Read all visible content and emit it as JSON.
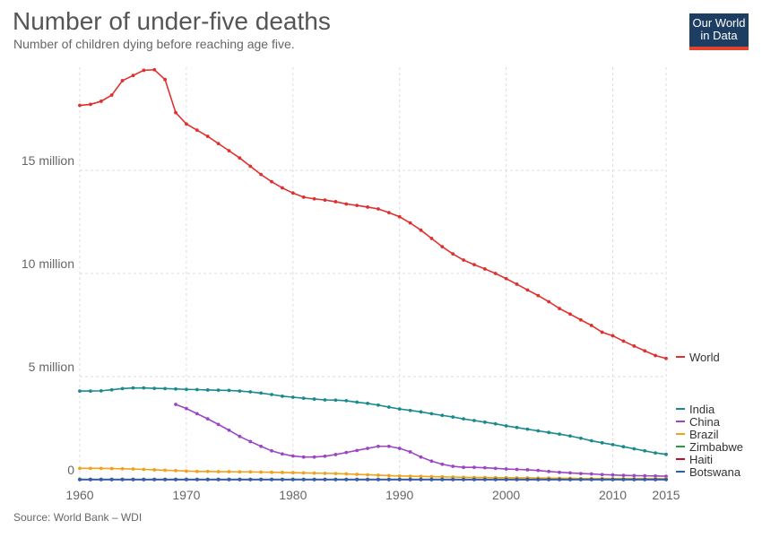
{
  "header": {
    "title": "Number of under-five deaths",
    "subtitle": "Number of children dying before reaching age five.",
    "logo_line1": "Our World",
    "logo_line2": "in Data"
  },
  "footer": {
    "source": "Source: World Bank – WDI"
  },
  "chart_data": {
    "type": "line",
    "title": "Number of under-five deaths",
    "subtitle": "Number of children dying before reaching age five.",
    "xlabel": "",
    "ylabel": "",
    "xlim": [
      1960,
      2015
    ],
    "ylim": [
      0,
      20000000
    ],
    "grid": true,
    "legend_position": "right",
    "x_ticks": [
      1960,
      1970,
      1980,
      1990,
      2000,
      2010,
      2015
    ],
    "y_ticks": [
      {
        "value": 0,
        "label": "0"
      },
      {
        "value": 5000000,
        "label": "5 million"
      },
      {
        "value": 10000000,
        "label": "10 million"
      },
      {
        "value": 15000000,
        "label": "15 million"
      }
    ],
    "series": [
      {
        "name": "World",
        "color": "#e02f2f",
        "start": 1960,
        "values": [
          18.15,
          18.2,
          18.35,
          18.65,
          19.35,
          19.6,
          19.85,
          19.88,
          19.4,
          17.8,
          17.25,
          16.95,
          16.65,
          16.3,
          15.95,
          15.6,
          15.2,
          14.8,
          14.45,
          14.15,
          13.9,
          13.7,
          13.62,
          13.56,
          13.48,
          13.37,
          13.3,
          13.22,
          13.13,
          12.95,
          12.75,
          12.45,
          12.1,
          11.7,
          11.3,
          10.95,
          10.65,
          10.43,
          10.22,
          10.0,
          9.75,
          9.48,
          9.2,
          8.93,
          8.63,
          8.3,
          8.03,
          7.75,
          7.48,
          7.15,
          6.98,
          6.72,
          6.48,
          6.25,
          6.02,
          5.88
        ]
      },
      {
        "name": "India",
        "color": "#1b8a8f",
        "start": 1960,
        "values": [
          4.3,
          4.3,
          4.31,
          4.36,
          4.42,
          4.45,
          4.45,
          4.43,
          4.42,
          4.4,
          4.38,
          4.37,
          4.35,
          4.34,
          4.33,
          4.3,
          4.26,
          4.2,
          4.13,
          4.05,
          4.0,
          3.95,
          3.91,
          3.87,
          3.86,
          3.83,
          3.76,
          3.7,
          3.62,
          3.52,
          3.43,
          3.36,
          3.29,
          3.2,
          3.12,
          3.04,
          2.95,
          2.87,
          2.79,
          2.71,
          2.61,
          2.53,
          2.45,
          2.37,
          2.29,
          2.21,
          2.12,
          2.01,
          1.89,
          1.79,
          1.7,
          1.6,
          1.5,
          1.4,
          1.3,
          1.23
        ]
      },
      {
        "name": "China",
        "color": "#9b47c4",
        "start": 1969,
        "values": [
          3.65,
          3.45,
          3.2,
          2.95,
          2.68,
          2.4,
          2.1,
          1.85,
          1.62,
          1.4,
          1.25,
          1.15,
          1.1,
          1.1,
          1.14,
          1.22,
          1.32,
          1.42,
          1.52,
          1.62,
          1.62,
          1.52,
          1.35,
          1.1,
          0.9,
          0.75,
          0.65,
          0.6,
          0.6,
          0.58,
          0.55,
          0.52,
          0.5,
          0.48,
          0.45,
          0.4,
          0.36,
          0.33,
          0.3,
          0.28,
          0.25,
          0.23,
          0.21,
          0.2,
          0.19,
          0.18,
          0.17
        ]
      },
      {
        "name": "Brazil",
        "color": "#f0a21e",
        "start": 1960,
        "values": [
          0.55,
          0.55,
          0.55,
          0.54,
          0.53,
          0.52,
          0.5,
          0.48,
          0.46,
          0.44,
          0.42,
          0.4,
          0.4,
          0.39,
          0.39,
          0.38,
          0.38,
          0.37,
          0.36,
          0.35,
          0.34,
          0.33,
          0.32,
          0.31,
          0.3,
          0.28,
          0.26,
          0.24,
          0.22,
          0.2,
          0.18,
          0.17,
          0.16,
          0.15,
          0.14,
          0.13,
          0.12,
          0.11,
          0.11,
          0.1,
          0.1,
          0.09,
          0.09,
          0.08,
          0.08,
          0.07,
          0.07,
          0.06,
          0.06,
          0.06,
          0.05,
          0.05,
          0.05,
          0.05,
          0.05,
          0.05
        ]
      },
      {
        "name": "Zimbabwe",
        "color": "#2a9a3a",
        "start": 1960,
        "values": [
          0.02,
          0.02,
          0.02,
          0.02,
          0.02,
          0.02,
          0.02,
          0.02,
          0.02,
          0.02,
          0.02,
          0.02,
          0.02,
          0.02,
          0.02,
          0.02,
          0.02,
          0.02,
          0.02,
          0.02,
          0.02,
          0.02,
          0.02,
          0.02,
          0.02,
          0.02,
          0.02,
          0.02,
          0.02,
          0.02,
          0.02,
          0.02,
          0.02,
          0.02,
          0.02,
          0.02,
          0.02,
          0.02,
          0.02,
          0.02,
          0.02,
          0.02,
          0.02,
          0.02,
          0.02,
          0.02,
          0.02,
          0.02,
          0.02,
          0.02,
          0.02,
          0.02,
          0.02,
          0.02,
          0.02,
          0.02
        ]
      },
      {
        "name": "Haiti",
        "color": "#b8102a",
        "start": 1960,
        "values": [
          0.01,
          0.01,
          0.01,
          0.01,
          0.01,
          0.01,
          0.01,
          0.01,
          0.01,
          0.01,
          0.01,
          0.01,
          0.01,
          0.01,
          0.01,
          0.01,
          0.01,
          0.01,
          0.01,
          0.01,
          0.01,
          0.01,
          0.01,
          0.01,
          0.01,
          0.01,
          0.01,
          0.01,
          0.01,
          0.01,
          0.01,
          0.01,
          0.01,
          0.01,
          0.01,
          0.01,
          0.01,
          0.01,
          0.01,
          0.01,
          0.01,
          0.01,
          0.01,
          0.01,
          0.01,
          0.01,
          0.01,
          0.01,
          0.01,
          0.01,
          0.01,
          0.01,
          0.01,
          0.01,
          0.01,
          0.01
        ]
      },
      {
        "name": "Botswana",
        "color": "#2d5fb5",
        "start": 1960,
        "values": [
          0.003,
          0.003,
          0.003,
          0.003,
          0.003,
          0.003,
          0.003,
          0.003,
          0.003,
          0.003,
          0.003,
          0.003,
          0.003,
          0.003,
          0.003,
          0.003,
          0.003,
          0.003,
          0.003,
          0.003,
          0.003,
          0.003,
          0.003,
          0.003,
          0.003,
          0.003,
          0.003,
          0.003,
          0.003,
          0.003,
          0.003,
          0.003,
          0.003,
          0.003,
          0.003,
          0.003,
          0.003,
          0.003,
          0.003,
          0.003,
          0.003,
          0.003,
          0.003,
          0.003,
          0.003,
          0.003,
          0.003,
          0.003,
          0.003,
          0.003,
          0.003,
          0.003,
          0.003,
          0.003,
          0.003,
          0.003
        ]
      }
    ],
    "values_unit_multiplier": 1000000
  }
}
